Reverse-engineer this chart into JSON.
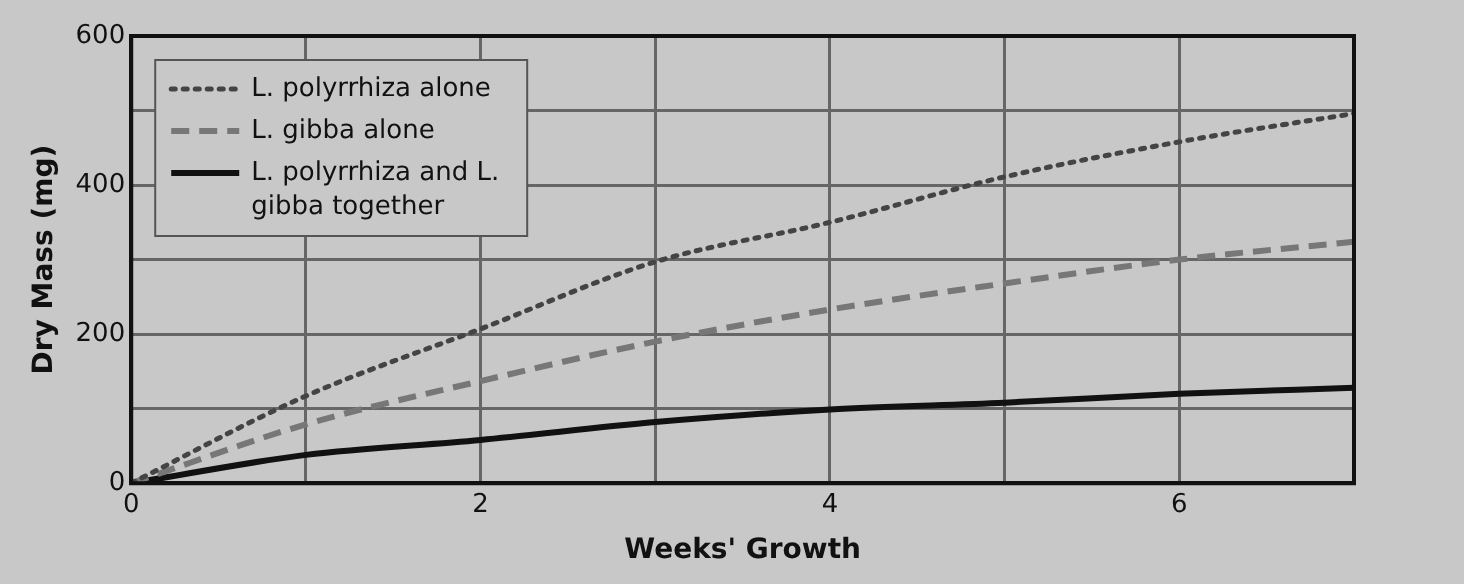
{
  "chart_data": {
    "type": "line",
    "xlabel": "Weeks' Growth",
    "ylabel": "Dry Mass (mg)",
    "x": [
      0,
      1,
      2,
      3,
      4,
      5,
      6,
      7
    ],
    "series": [
      {
        "name": "L. polyrrhiza alone",
        "color": "#444444",
        "line_style": "dotted",
        "values": [
          0,
          117,
          207,
          297,
          350,
          411,
          458,
          496
        ]
      },
      {
        "name": "L. gibba alone",
        "color": "#777777",
        "line_style": "dashed",
        "values": [
          0,
          79,
          137,
          190,
          233,
          268,
          300,
          324
        ]
      },
      {
        "name": "L. polyrrhiza and L. gibba together",
        "color": "#111111",
        "line_style": "solid",
        "values": [
          0,
          38,
          58,
          82,
          99,
          108,
          120,
          128
        ]
      }
    ],
    "xlim": [
      0,
      7
    ],
    "xticks": [
      0,
      {
        "value": 1,
        "label": null
      },
      2,
      {
        "value": 3,
        "label": null
      },
      4,
      {
        "value": 5,
        "label": null
      },
      6,
      {
        "value": 7,
        "label": null
      }
    ],
    "ylim": [
      0,
      600
    ],
    "yticks": [
      0,
      {
        "value": 100,
        "label": null
      },
      200,
      {
        "value": 300,
        "label": null
      },
      400,
      {
        "value": 500,
        "label": null
      },
      600
    ],
    "grid": true,
    "legend": "top left",
    "marker": "none"
  }
}
